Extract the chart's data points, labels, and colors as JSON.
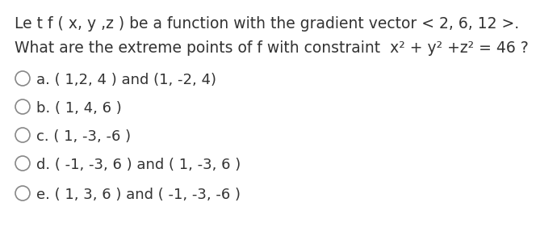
{
  "line1": "Le t f ( x, y ,z ) be a function with the gradient vector < 2, 6, 12 >.",
  "line2": "What are the extreme points of f with constraint  x² + y² +z² = 46 ?",
  "options": [
    {
      "label": "a.",
      "text": "( 1,2, 4 ) and (1, -2, 4)"
    },
    {
      "label": "b.",
      "text": "( 1, 4, 6 )"
    },
    {
      "label": "c.",
      "text": "( 1, -3, -6 )"
    },
    {
      "label": "d.",
      "text": "( -1, -3, 6 ) and ( 1, -3, 6 )"
    },
    {
      "label": "e.",
      "text": "( 1, 3, 6 ) and ( -1, -3, -6 )"
    }
  ],
  "text_color": "#333333",
  "bg_color": "#ffffff",
  "font_size_header": 13.5,
  "font_size_option": 13.0,
  "circle_color": "#888888"
}
